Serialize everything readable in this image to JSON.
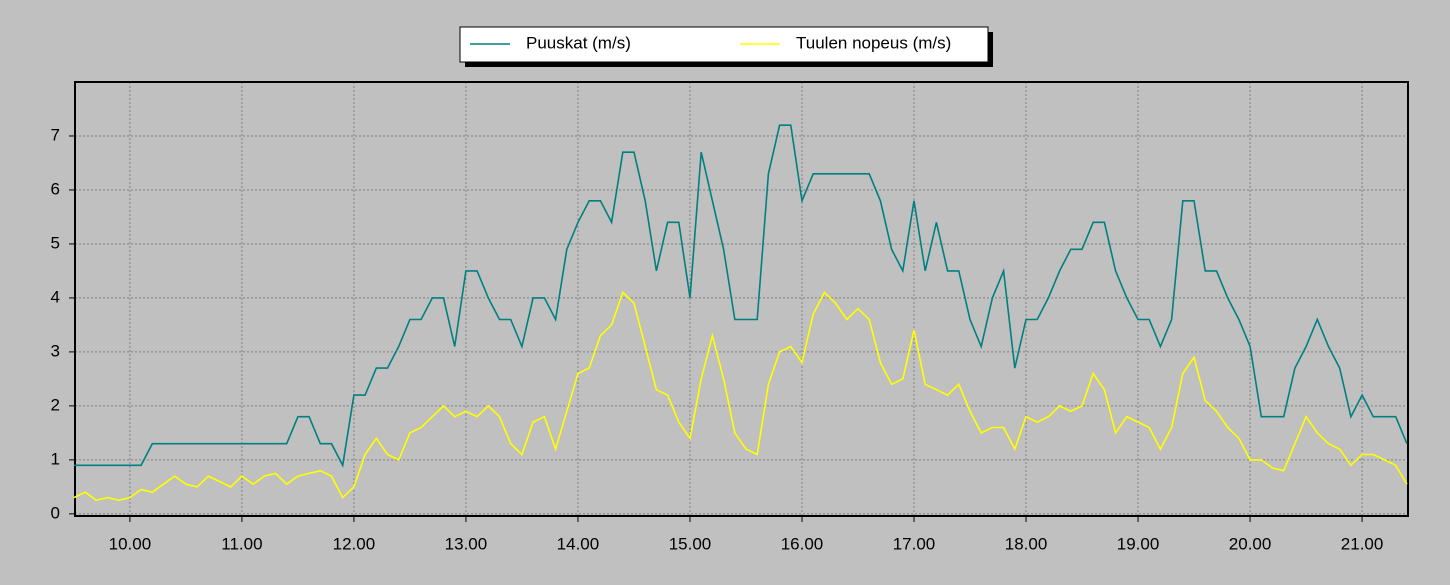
{
  "chart_data": {
    "type": "line",
    "x": [
      9.5,
      9.6,
      9.7,
      9.8,
      9.9,
      10.0,
      10.1,
      10.2,
      10.3,
      10.4,
      10.5,
      10.6,
      10.7,
      10.8,
      10.9,
      11.0,
      11.1,
      11.2,
      11.3,
      11.4,
      11.5,
      11.6,
      11.7,
      11.8,
      11.9,
      12.0,
      12.1,
      12.2,
      12.3,
      12.4,
      12.5,
      12.6,
      12.7,
      12.8,
      12.9,
      13.0,
      13.1,
      13.2,
      13.3,
      13.4,
      13.5,
      13.6,
      13.7,
      13.8,
      13.9,
      14.0,
      14.1,
      14.2,
      14.3,
      14.4,
      14.5,
      14.6,
      14.7,
      14.8,
      14.9,
      15.0,
      15.1,
      15.2,
      15.3,
      15.4,
      15.5,
      15.6,
      15.7,
      15.8,
      15.9,
      16.0,
      16.1,
      16.2,
      16.3,
      16.4,
      16.5,
      16.6,
      16.7,
      16.8,
      16.9,
      17.0,
      17.1,
      17.2,
      17.3,
      17.4,
      17.5,
      17.6,
      17.7,
      17.8,
      17.9,
      18.0,
      18.1,
      18.2,
      18.3,
      18.4,
      18.5,
      18.6,
      18.7,
      18.8,
      18.9,
      19.0,
      19.1,
      19.2,
      19.3,
      19.4,
      19.5,
      19.6,
      19.7,
      19.8,
      19.9,
      20.0,
      20.1,
      20.2,
      20.3,
      20.4,
      20.5,
      20.6,
      20.7,
      20.8,
      20.9,
      21.0,
      21.1,
      21.2,
      21.3,
      21.4
    ],
    "series": [
      {
        "name": "Puuskat (m/s)",
        "color": "#008080",
        "values": [
          0.9,
          0.9,
          0.9,
          0.9,
          0.9,
          0.9,
          0.9,
          1.3,
          1.3,
          1.3,
          1.3,
          1.3,
          1.3,
          1.3,
          1.3,
          1.3,
          1.3,
          1.3,
          1.3,
          1.3,
          1.8,
          1.8,
          1.3,
          1.3,
          0.9,
          2.2,
          2.2,
          2.7,
          2.7,
          3.1,
          3.6,
          3.6,
          4.0,
          4.0,
          3.1,
          4.5,
          4.5,
          4.0,
          3.6,
          3.6,
          3.1,
          4.0,
          4.0,
          3.6,
          4.9,
          5.4,
          5.8,
          5.8,
          5.4,
          6.7,
          6.7,
          5.8,
          4.5,
          5.4,
          5.4,
          4.0,
          6.7,
          5.8,
          4.9,
          3.6,
          3.6,
          3.6,
          6.3,
          7.2,
          7.2,
          5.8,
          6.3,
          6.3,
          6.3,
          6.3,
          6.3,
          6.3,
          5.8,
          4.9,
          4.5,
          5.8,
          4.5,
          5.4,
          4.5,
          4.5,
          3.6,
          3.1,
          4.0,
          4.5,
          2.7,
          3.6,
          3.6,
          4.0,
          4.5,
          4.9,
          4.9,
          5.4,
          5.4,
          4.5,
          4.0,
          3.6,
          3.6,
          3.1,
          3.6,
          5.8,
          5.8,
          4.5,
          4.5,
          4.0,
          3.6,
          3.1,
          1.8,
          1.8,
          1.8,
          2.7,
          3.1,
          3.6,
          3.1,
          2.7,
          1.8,
          2.2,
          1.8,
          1.8,
          1.8,
          1.3
        ]
      },
      {
        "name": "Tuulen nopeus (m/s)",
        "color": "#ffff00",
        "values": [
          0.3,
          0.4,
          0.25,
          0.3,
          0.25,
          0.3,
          0.45,
          0.4,
          0.55,
          0.7,
          0.55,
          0.5,
          0.7,
          0.6,
          0.5,
          0.7,
          0.55,
          0.7,
          0.75,
          0.55,
          0.7,
          0.75,
          0.8,
          0.7,
          0.3,
          0.5,
          1.1,
          1.4,
          1.1,
          1.0,
          1.5,
          1.6,
          1.8,
          2.0,
          1.8,
          1.9,
          1.8,
          2.0,
          1.8,
          1.3,
          1.1,
          1.7,
          1.8,
          1.2,
          1.9,
          2.6,
          2.7,
          3.3,
          3.5,
          4.1,
          3.9,
          3.1,
          2.3,
          2.2,
          1.7,
          1.4,
          2.5,
          3.3,
          2.5,
          1.5,
          1.2,
          1.1,
          2.4,
          3.0,
          3.1,
          2.8,
          3.7,
          4.1,
          3.9,
          3.6,
          3.8,
          3.6,
          2.8,
          2.4,
          2.5,
          3.4,
          2.4,
          2.3,
          2.2,
          2.4,
          1.9,
          1.5,
          1.6,
          1.6,
          1.2,
          1.8,
          1.7,
          1.8,
          2.0,
          1.9,
          2.0,
          2.6,
          2.3,
          1.5,
          1.8,
          1.7,
          1.6,
          1.2,
          1.6,
          2.6,
          2.9,
          2.1,
          1.9,
          1.6,
          1.4,
          1.0,
          1.0,
          0.85,
          0.8,
          1.3,
          1.8,
          1.5,
          1.3,
          1.2,
          0.9,
          1.1,
          1.1,
          1.0,
          0.9,
          0.55
        ]
      }
    ],
    "xlim": [
      9.51,
      21.41
    ],
    "xticks": [
      {
        "value": 10,
        "label": "10.00"
      },
      {
        "value": 11,
        "label": "11.00"
      },
      {
        "value": 12,
        "label": "12.00"
      },
      {
        "value": 13,
        "label": "13.00"
      },
      {
        "value": 14,
        "label": "14.00"
      },
      {
        "value": 15,
        "label": "15.00"
      },
      {
        "value": 16,
        "label": "16.00"
      },
      {
        "value": 17,
        "label": "17.00"
      },
      {
        "value": 18,
        "label": "18.00"
      },
      {
        "value": 19,
        "label": "19.00"
      },
      {
        "value": 20,
        "label": "20.00"
      },
      {
        "value": 21,
        "label": "21.00"
      }
    ],
    "ylim": [
      -0.04,
      8.0
    ],
    "yticks": [
      0,
      1,
      2,
      3,
      4,
      5,
      6,
      7
    ],
    "grid": true,
    "legend": "top"
  }
}
